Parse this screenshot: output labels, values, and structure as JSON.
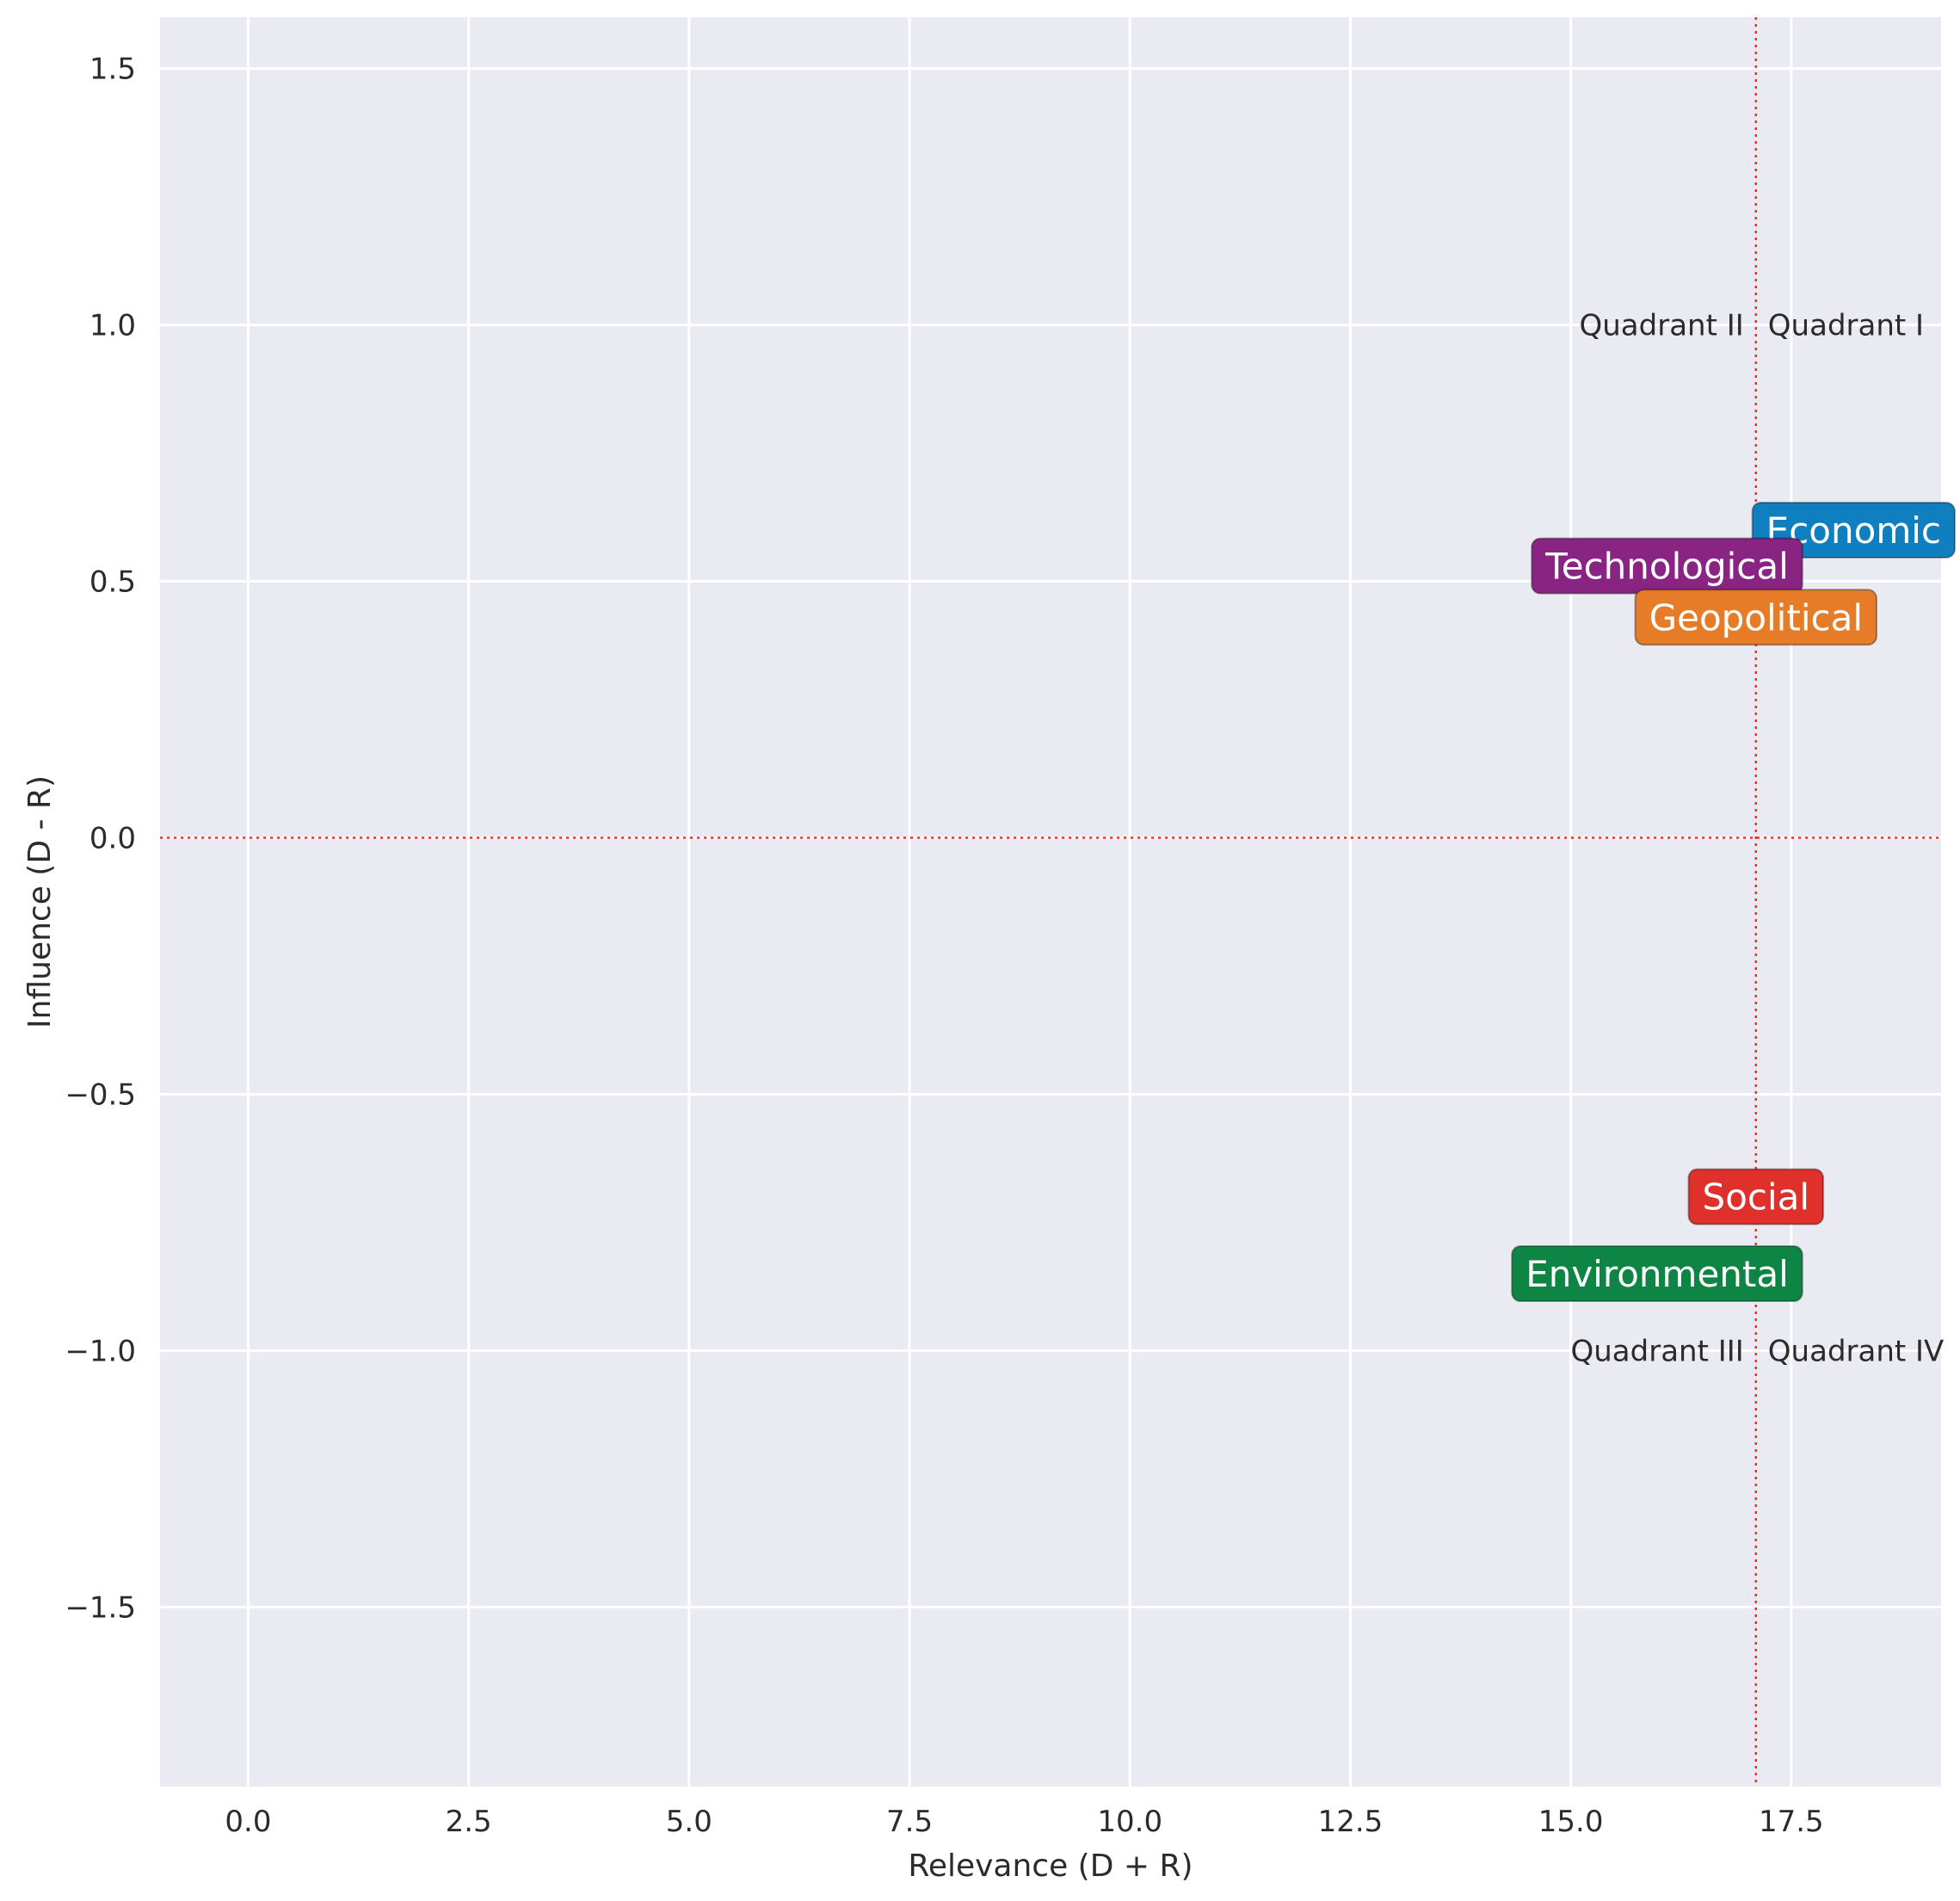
{
  "chart_data": {
    "type": "scatter",
    "title": "",
    "xlabel": "Relevance (D + R)",
    "ylabel": "Influence (D - R)",
    "xlim": [
      -1.0,
      19.2
    ],
    "ylim": [
      -1.85,
      1.6
    ],
    "xticks": [
      0.0,
      2.5,
      5.0,
      7.5,
      10.0,
      12.5,
      15.0,
      17.5
    ],
    "xtick_labels": [
      "0.0",
      "2.5",
      "5.0",
      "7.5",
      "10.0",
      "12.5",
      "15.0",
      "17.5"
    ],
    "yticks": [
      1.5,
      1.0,
      0.5,
      0.0,
      -0.5,
      -1.0,
      -1.5
    ],
    "ytick_labels": [
      "1.5",
      "1.0",
      "0.5",
      "0.0",
      "−0.5",
      "−1.0",
      "−1.5"
    ],
    "grid": true,
    "reference_lines": {
      "x": 17.1,
      "y": 0.0,
      "color": "#e8312a",
      "style": "dotted"
    },
    "points": [
      {
        "name": "Economic",
        "x": 17.1,
        "y": 0.6,
        "color": "#0f7fc0",
        "anchor": "left"
      },
      {
        "name": "Technological",
        "x": 17.1,
        "y": 0.53,
        "color": "#8a2483",
        "anchor": "right"
      },
      {
        "name": "Geopolitical",
        "x": 17.1,
        "y": 0.43,
        "color": "#e77c28",
        "anchor": "center"
      },
      {
        "name": "Social",
        "x": 17.1,
        "y": -0.7,
        "color": "#e0302c",
        "anchor": "center"
      },
      {
        "name": "Environmental",
        "x": 17.1,
        "y": -0.85,
        "color": "#0e8545",
        "anchor": "right"
      }
    ],
    "quadrant_labels": [
      {
        "text": "Quadrant I",
        "x": 17.1,
        "y": 1.0,
        "anchor": "left"
      },
      {
        "text": "Quadrant II",
        "x": 17.1,
        "y": 1.0,
        "anchor": "right"
      },
      {
        "text": "Quadrant III",
        "x": 17.1,
        "y": -1.0,
        "anchor": "right"
      },
      {
        "text": "Quadrant IV",
        "x": 17.1,
        "y": -1.0,
        "anchor": "left"
      }
    ]
  }
}
